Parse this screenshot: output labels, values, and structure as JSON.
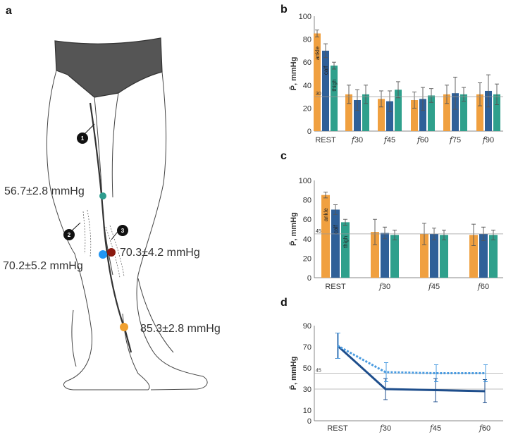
{
  "colors": {
    "ankle": "#F0A040",
    "calf": "#2F6098",
    "thigh": "#2FA08C",
    "line_solid": "#1E4E8C",
    "line_dotted": "#4A9BE0",
    "site_green": "#2E9C8E",
    "site_blue": "#2196F3",
    "site_red": "#8B1A10",
    "site_orange": "#F0A030",
    "brief": "#555555"
  },
  "panel_a": {
    "label": "a",
    "readings": [
      {
        "name": "thigh-reading",
        "text": "56.7±2.8 mmHg"
      },
      {
        "name": "calf-medial-reading",
        "text": "70.2±5.2 mmHg"
      },
      {
        "name": "calf-lateral-reading",
        "text": "70.3±4.2 mmHg"
      },
      {
        "name": "ankle-reading",
        "text": "85.3±2.8 mmHg"
      }
    ],
    "markers": [
      "1",
      "2",
      "3"
    ]
  },
  "chart_data": [
    {
      "panel": "b",
      "type": "bar",
      "ylabel": "P̄, mmHg",
      "ylim": [
        0,
        100
      ],
      "yticks": [
        0,
        20,
        40,
        60,
        80,
        100
      ],
      "reference_line": {
        "value": 30,
        "label": "30"
      },
      "categories": [
        "REST",
        "f30",
        "f45",
        "f60",
        "f75",
        "f90"
      ],
      "series_labels": [
        "ankle",
        "calf",
        "thigh"
      ],
      "series": [
        {
          "name": "ankle",
          "values": [
            85,
            32,
            28,
            27,
            32,
            32
          ],
          "errors": [
            3,
            8,
            7,
            7,
            8,
            10
          ]
        },
        {
          "name": "calf",
          "values": [
            70,
            27,
            26,
            28,
            33,
            35
          ],
          "errors": [
            6,
            9,
            9,
            10,
            14,
            14
          ]
        },
        {
          "name": "thigh",
          "values": [
            57,
            32,
            36,
            31,
            32,
            32
          ],
          "errors": [
            3,
            8,
            7,
            6,
            6,
            9
          ]
        }
      ]
    },
    {
      "panel": "c",
      "type": "bar",
      "ylabel": "P̄, mmHg",
      "ylim": [
        0,
        100
      ],
      "yticks": [
        0,
        20,
        40,
        60,
        80,
        100
      ],
      "reference_line": {
        "value": 45,
        "label": "45"
      },
      "categories": [
        "REST",
        "f30",
        "f45",
        "f60"
      ],
      "series_labels": [
        "ankle",
        "calf",
        "thigh"
      ],
      "series": [
        {
          "name": "ankle",
          "values": [
            85,
            47,
            45,
            44
          ],
          "errors": [
            3,
            13,
            11,
            11
          ]
        },
        {
          "name": "calf",
          "values": [
            70,
            46,
            45,
            45
          ],
          "errors": [
            5,
            6,
            6,
            7
          ]
        },
        {
          "name": "thigh",
          "values": [
            57,
            44,
            44,
            44
          ],
          "errors": [
            3,
            5,
            5,
            5
          ]
        }
      ]
    },
    {
      "panel": "d",
      "type": "line",
      "ylabel": "P̄, mmHg",
      "ylim": [
        0,
        90
      ],
      "yticks": [
        0,
        10,
        30,
        50,
        70,
        90
      ],
      "reference_lines": [
        {
          "value": 45,
          "label": "45"
        },
        {
          "value": 30,
          "label": ""
        }
      ],
      "categories": [
        "REST",
        "f30",
        "f45",
        "f60"
      ],
      "series": [
        {
          "name": "solid",
          "style": "solid",
          "values": [
            71,
            30,
            29,
            28
          ],
          "errors": [
            12,
            10,
            11,
            11
          ]
        },
        {
          "name": "dotted",
          "style": "dotted",
          "values": [
            71,
            46,
            45,
            45
          ],
          "errors": [
            12,
            9,
            8,
            8
          ]
        }
      ]
    }
  ]
}
